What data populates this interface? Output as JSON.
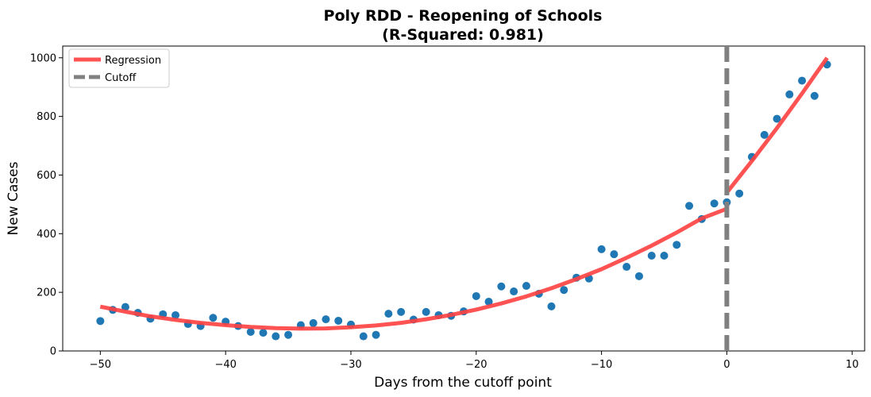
{
  "chart_data": {
    "type": "scatter",
    "title": "Poly RDD - Reopening of Schools",
    "subtitle": "(R-Squared: 0.981)",
    "xlabel": "Days from the cutoff point",
    "ylabel": "New Cases",
    "xlim": [
      -53,
      11
    ],
    "ylim": [
      0,
      1040
    ],
    "xticks": [
      -50,
      -40,
      -30,
      -20,
      -10,
      0,
      10
    ],
    "xtick_labels": [
      "−50",
      "−40",
      "−30",
      "−20",
      "−10",
      "0",
      "10"
    ],
    "yticks": [
      0,
      200,
      400,
      600,
      800,
      1000
    ],
    "ytick_labels": [
      "0",
      "200",
      "400",
      "600",
      "800",
      "1000"
    ],
    "grid": false,
    "legend_position": "top-left",
    "legend": [
      {
        "label": "Regression",
        "color": "#ff4040",
        "style": "solid"
      },
      {
        "label": "Cutoff",
        "color": "#808080",
        "style": "dashed"
      }
    ],
    "scatter": {
      "color": "#1f77b4",
      "points": [
        [
          -50,
          102
        ],
        [
          -49,
          140
        ],
        [
          -48,
          150
        ],
        [
          -47,
          130
        ],
        [
          -46,
          110
        ],
        [
          -45,
          125
        ],
        [
          -44,
          122
        ],
        [
          -43,
          92
        ],
        [
          -42,
          85
        ],
        [
          -41,
          113
        ],
        [
          -40,
          100
        ],
        [
          -39,
          85
        ],
        [
          -38,
          65
        ],
        [
          -37,
          62
        ],
        [
          -36,
          50
        ],
        [
          -35,
          55
        ],
        [
          -34,
          88
        ],
        [
          -33,
          95
        ],
        [
          -32,
          108
        ],
        [
          -31,
          103
        ],
        [
          -30,
          90
        ],
        [
          -29,
          50
        ],
        [
          -28,
          55
        ],
        [
          -27,
          127
        ],
        [
          -26,
          133
        ],
        [
          -25,
          107
        ],
        [
          -24,
          133
        ],
        [
          -23,
          122
        ],
        [
          -22,
          120
        ],
        [
          -21,
          135
        ],
        [
          -20,
          187
        ],
        [
          -19,
          168
        ],
        [
          -18,
          220
        ],
        [
          -17,
          203
        ],
        [
          -16,
          222
        ],
        [
          -15,
          195
        ],
        [
          -14,
          152
        ],
        [
          -13,
          208
        ],
        [
          -12,
          250
        ],
        [
          -11,
          247
        ],
        [
          -10,
          347
        ],
        [
          -9,
          330
        ],
        [
          -8,
          287
        ],
        [
          -7,
          255
        ],
        [
          -6,
          325
        ],
        [
          -5,
          325
        ],
        [
          -4,
          362
        ],
        [
          -3,
          495
        ],
        [
          -2,
          450
        ],
        [
          -1,
          503
        ],
        [
          0,
          507
        ],
        [
          1,
          537
        ],
        [
          2,
          662
        ],
        [
          3,
          737
        ],
        [
          4,
          792
        ],
        [
          5,
          875
        ],
        [
          6,
          922
        ],
        [
          7,
          870
        ],
        [
          8,
          977
        ]
      ]
    },
    "regression": {
      "color": "#ff4040",
      "segments": [
        {
          "x": [
            -50,
            -48,
            -46,
            -44,
            -42,
            -40,
            -38,
            -36,
            -34,
            -32,
            -30,
            -28,
            -26,
            -24,
            -22,
            -20,
            -18,
            -16,
            -14,
            -12,
            -10,
            -8,
            -6,
            -4,
            -2,
            0
          ],
          "y": [
            151,
            134,
            118,
            106,
            96,
            88,
            82,
            78,
            76,
            77,
            81,
            87,
            96,
            108,
            123,
            141,
            162,
            186,
            214,
            245,
            279,
            318,
            359,
            404,
            452,
            485
          ]
        },
        {
          "x": [
            0,
            2,
            4,
            6,
            8
          ],
          "y": [
            540,
            648,
            760,
            878,
            1000
          ]
        }
      ]
    },
    "cutoff": {
      "x": 0,
      "color": "#808080"
    }
  }
}
